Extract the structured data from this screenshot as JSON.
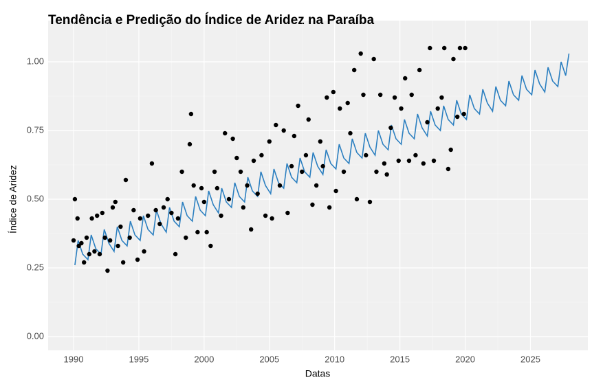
{
  "chart_data": {
    "title": "Tendência e Predição do Índice de Aridez na Paraíba",
    "xlabel": "Datas",
    "ylabel": "Índice de Aridez",
    "xlim": [
      1988.05,
      2029.4
    ],
    "ylim": [
      -0.05,
      1.15
    ],
    "xticks": [
      1990,
      1995,
      2000,
      2005,
      2010,
      2015,
      2020,
      2025
    ],
    "yticks": [
      {
        "value": 0,
        "label": "0.00"
      },
      {
        "value": 0.25,
        "label": "0.25"
      },
      {
        "value": 0.5,
        "label": "0.50"
      },
      {
        "value": 0.75,
        "label": "0.75"
      },
      {
        "value": 1,
        "label": "1.00"
      }
    ],
    "grid": true,
    "layers": [
      {
        "type": "line",
        "color": "#2b7fc0",
        "x": [
          1990.1,
          1990.35,
          1990.7,
          1991.1,
          1991.35,
          1991.7,
          1992.1,
          1992.35,
          1992.7,
          1993.1,
          1993.35,
          1993.7,
          1994.1,
          1994.35,
          1994.7,
          1995.1,
          1995.35,
          1995.7,
          1996.1,
          1996.35,
          1996.7,
          1997.1,
          1997.35,
          1997.7,
          1998.1,
          1998.35,
          1998.7,
          1999.1,
          1999.35,
          1999.7,
          2000.1,
          2000.35,
          2000.7,
          2001.1,
          2001.35,
          2001.7,
          2002.1,
          2002.35,
          2002.7,
          2003.1,
          2003.35,
          2003.7,
          2004.1,
          2004.35,
          2004.7,
          2005.1,
          2005.35,
          2005.7,
          2006.1,
          2006.35,
          2006.7,
          2007.1,
          2007.35,
          2007.7,
          2008.1,
          2008.35,
          2008.7,
          2009.1,
          2009.35,
          2009.7,
          2010.1,
          2010.35,
          2010.7,
          2011.1,
          2011.35,
          2011.7,
          2012.1,
          2012.35,
          2012.7,
          2013.1,
          2013.35,
          2013.7,
          2014.1,
          2014.35,
          2014.7,
          2015.1,
          2015.35,
          2015.7,
          2016.1,
          2016.35,
          2016.7,
          2017.1,
          2017.35,
          2017.7,
          2018.1,
          2018.35,
          2018.7,
          2019.1,
          2019.35,
          2019.7,
          2020.1,
          2020.35,
          2020.7,
          2021.1,
          2021.35,
          2021.7,
          2022.1,
          2022.35,
          2022.7,
          2023.1,
          2023.35,
          2023.7,
          2024.1,
          2024.35,
          2024.7,
          2025.1,
          2025.35,
          2025.7,
          2026.1,
          2026.35,
          2026.7,
          2027.1,
          2027.35,
          2027.7,
          2027.95
        ],
        "values": [
          0.26,
          0.35,
          0.3,
          0.28,
          0.37,
          0.32,
          0.3,
          0.39,
          0.34,
          0.31,
          0.4,
          0.35,
          0.33,
          0.42,
          0.37,
          0.35,
          0.44,
          0.39,
          0.37,
          0.46,
          0.41,
          0.38,
          0.47,
          0.42,
          0.4,
          0.49,
          0.44,
          0.42,
          0.51,
          0.46,
          0.44,
          0.53,
          0.48,
          0.45,
          0.54,
          0.49,
          0.47,
          0.56,
          0.51,
          0.49,
          0.58,
          0.53,
          0.51,
          0.6,
          0.55,
          0.52,
          0.61,
          0.56,
          0.54,
          0.63,
          0.58,
          0.56,
          0.65,
          0.6,
          0.58,
          0.67,
          0.62,
          0.59,
          0.68,
          0.63,
          0.61,
          0.7,
          0.65,
          0.63,
          0.72,
          0.67,
          0.65,
          0.74,
          0.69,
          0.66,
          0.75,
          0.7,
          0.68,
          0.77,
          0.72,
          0.7,
          0.79,
          0.74,
          0.72,
          0.81,
          0.76,
          0.73,
          0.82,
          0.77,
          0.75,
          0.84,
          0.79,
          0.77,
          0.86,
          0.81,
          0.79,
          0.88,
          0.83,
          0.81,
          0.9,
          0.85,
          0.82,
          0.91,
          0.86,
          0.84,
          0.93,
          0.88,
          0.86,
          0.95,
          0.9,
          0.88,
          0.97,
          0.92,
          0.89,
          0.98,
          0.93,
          0.91,
          1.0,
          0.95,
          1.03
        ]
      },
      {
        "type": "scatter",
        "color": "#000000",
        "x": [
          1990.0,
          1990.1,
          1990.3,
          1990.4,
          1990.6,
          1990.8,
          1991.0,
          1991.2,
          1991.4,
          1991.6,
          1991.8,
          1992.0,
          1992.2,
          1992.4,
          1992.6,
          1992.8,
          1993.0,
          1993.2,
          1993.4,
          1993.6,
          1993.8,
          1994.0,
          1994.3,
          1994.6,
          1994.9,
          1995.1,
          1995.4,
          1995.7,
          1996.0,
          1996.3,
          1996.6,
          1996.9,
          1997.2,
          1997.5,
          1997.8,
          1998.0,
          1998.3,
          1998.6,
          1998.9,
          1999.0,
          1999.2,
          1999.5,
          1999.8,
          2000.0,
          2000.2,
          2000.5,
          2000.8,
          2001.0,
          2001.3,
          2001.6,
          2001.9,
          2002.2,
          2002.5,
          2002.8,
          2003.0,
          2003.3,
          2003.6,
          2003.8,
          2004.1,
          2004.4,
          2004.7,
          2005.0,
          2005.2,
          2005.5,
          2005.8,
          2006.1,
          2006.4,
          2006.7,
          2006.9,
          2007.2,
          2007.5,
          2007.8,
          2008.0,
          2008.3,
          2008.6,
          2008.9,
          2009.1,
          2009.4,
          2009.6,
          2009.9,
          2010.1,
          2010.4,
          2010.7,
          2011.0,
          2011.2,
          2011.5,
          2011.7,
          2012.0,
          2012.2,
          2012.4,
          2012.7,
          2013.0,
          2013.2,
          2013.5,
          2013.8,
          2014.0,
          2014.3,
          2014.6,
          2014.9,
          2015.1,
          2015.4,
          2015.7,
          2015.9,
          2016.2,
          2016.5,
          2016.8,
          2017.1,
          2017.3,
          2017.6,
          2017.9,
          2018.2,
          2018.4,
          2018.7,
          2018.9,
          2019.1,
          2019.4,
          2019.6,
          2019.9,
          2020.0
        ],
        "values": [
          0.35,
          0.5,
          0.43,
          0.33,
          0.34,
          0.27,
          0.36,
          0.3,
          0.43,
          0.31,
          0.44,
          0.3,
          0.45,
          0.36,
          0.24,
          0.35,
          0.47,
          0.49,
          0.33,
          0.4,
          0.27,
          0.57,
          0.36,
          0.46,
          0.28,
          0.43,
          0.31,
          0.44,
          0.63,
          0.46,
          0.41,
          0.47,
          0.5,
          0.45,
          0.3,
          0.43,
          0.6,
          0.36,
          0.7,
          0.81,
          0.55,
          0.38,
          0.54,
          0.49,
          0.38,
          0.33,
          0.6,
          0.54,
          0.44,
          0.74,
          0.5,
          0.72,
          0.65,
          0.6,
          0.47,
          0.55,
          0.39,
          0.64,
          0.52,
          0.66,
          0.44,
          0.71,
          0.43,
          0.77,
          0.55,
          0.75,
          0.45,
          0.62,
          0.73,
          0.84,
          0.6,
          0.66,
          0.79,
          0.48,
          0.55,
          0.71,
          0.62,
          0.87,
          0.47,
          0.89,
          0.53,
          0.83,
          0.6,
          0.85,
          0.74,
          0.97,
          0.5,
          1.03,
          0.88,
          0.66,
          0.49,
          1.01,
          0.6,
          0.88,
          0.63,
          0.59,
          0.76,
          0.87,
          0.64,
          0.83,
          0.94,
          0.64,
          0.88,
          0.66,
          0.97,
          0.63,
          0.78,
          1.05,
          0.64,
          0.83,
          0.87,
          1.05,
          0.61,
          0.68,
          1.01,
          0.8,
          1.05,
          0.81,
          1.05
        ]
      }
    ]
  }
}
